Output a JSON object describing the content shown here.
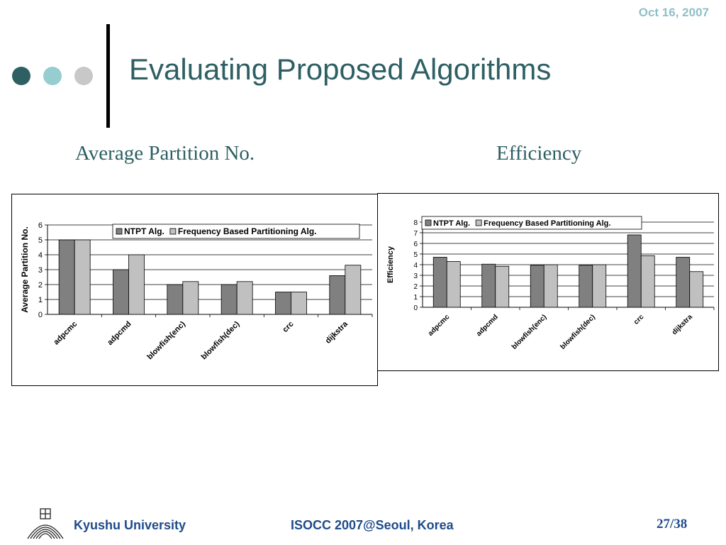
{
  "header": {
    "date": "Oct 16, 2007",
    "title": "Evaluating Proposed Algorithms",
    "dot_colors": [
      "#2e5f63",
      "#96cdd1",
      "#c8c8c8"
    ]
  },
  "subtitles": {
    "left": "Average Partition No.",
    "right": "Efficiency"
  },
  "colors": {
    "ntpt": "#808080",
    "freq": "#c0c0c0",
    "accent": "#2e5f63",
    "footer": "#1e4a8c"
  },
  "chart_data": [
    {
      "type": "bar",
      "title": "",
      "ylabel": "Average Partition No.",
      "xlabel": "",
      "ylim": [
        0,
        6
      ],
      "yticks": [
        0,
        1,
        2,
        3,
        4,
        5,
        6
      ],
      "grid": true,
      "legend_position": "top-right",
      "categories": [
        "adpcmc",
        "adpcmd",
        "blowfish(enc)",
        "blowfish(dec)",
        "crc",
        "dijkstra"
      ],
      "series": [
        {
          "name": "NTPT Alg.",
          "values": [
            5,
            3,
            2,
            2,
            1.5,
            2.6
          ]
        },
        {
          "name": "Frequency Based Partitioning Alg.",
          "values": [
            5,
            4,
            2.2,
            2.2,
            1.5,
            3.3
          ]
        }
      ]
    },
    {
      "type": "bar",
      "title": "",
      "ylabel": "Efficiency",
      "xlabel": "",
      "ylim": [
        0,
        8
      ],
      "yticks": [
        0,
        1,
        2,
        3,
        4,
        5,
        6,
        7,
        8
      ],
      "grid": true,
      "legend_position": "top",
      "categories": [
        "adpcmc",
        "adpcmd",
        "blowfish(enc)",
        "blowfish(dec)",
        "crc",
        "dijkstra"
      ],
      "series": [
        {
          "name": "NTPT Alg.",
          "values": [
            4.7,
            4.05,
            3.95,
            3.95,
            6.8,
            4.7
          ]
        },
        {
          "name": "Frequency Based Partitioning Alg.",
          "values": [
            4.3,
            3.85,
            4.0,
            4.0,
            4.85,
            3.35
          ]
        }
      ]
    }
  ],
  "footer": {
    "university": "Kyushu University",
    "conference": "ISOCC 2007@Seoul, Korea",
    "page": "27/38"
  }
}
